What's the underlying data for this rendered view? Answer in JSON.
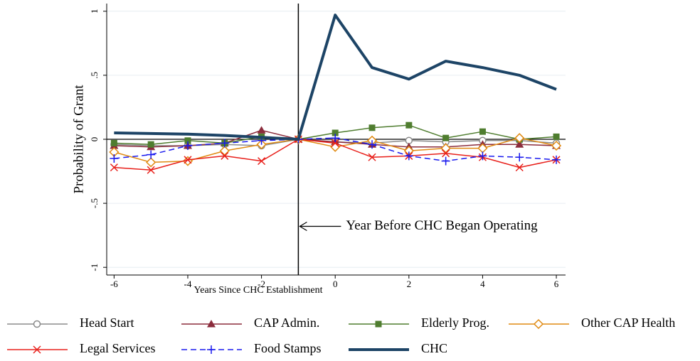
{
  "chart_data": {
    "type": "line",
    "x_label": "Years Since CHC Establishment",
    "y_label": "Probability of Grant",
    "x": [
      -6,
      -5,
      -4,
      -3,
      -2,
      -1,
      0,
      1,
      2,
      3,
      4,
      5,
      6
    ],
    "xlim": [
      -6.2,
      6.25
    ],
    "xticks": [
      -6,
      -4,
      -2,
      0,
      2,
      4,
      6
    ],
    "ylim": [
      -1.06,
      1.06
    ],
    "yticks": [
      {
        "value": -1,
        "label": "-1"
      },
      {
        "value": -0.5,
        "label": "-.5"
      },
      0,
      {
        "value": 0.5,
        "label": ".5"
      },
      1
    ],
    "grid": true,
    "vline": -1,
    "annotation": "Year Before CHC Began Operating",
    "series": [
      {
        "name": "Head Start",
        "color": "#8c8c8c",
        "marker": "circle",
        "dash": false,
        "width": 1.5,
        "values": [
          -0.04,
          -0.05,
          -0.05,
          -0.04,
          -0.05,
          0,
          -0.02,
          -0.03,
          -0.01,
          -0.02,
          -0.01,
          -0.01,
          -0.03
        ]
      },
      {
        "name": "CAP Admin.",
        "color": "#8b2c3c",
        "marker": "triangle",
        "dash": false,
        "width": 1.5,
        "values": [
          -0.05,
          -0.06,
          -0.05,
          -0.03,
          0.07,
          0,
          -0.02,
          -0.04,
          -0.06,
          -0.06,
          -0.04,
          -0.04,
          -0.05
        ]
      },
      {
        "name": "Elderly Prog.",
        "color": "#4f7d2f",
        "marker": "square",
        "dash": false,
        "width": 1.5,
        "values": [
          -0.03,
          -0.04,
          -0.01,
          -0.03,
          0.02,
          0,
          0.05,
          0.09,
          0.11,
          0.01,
          0.06,
          0,
          0.02
        ]
      },
      {
        "name": "Other CAP Health",
        "color": "#e08a12",
        "marker": "diamond",
        "dash": false,
        "width": 1.5,
        "values": [
          -0.1,
          -0.18,
          -0.17,
          -0.09,
          -0.04,
          0,
          -0.06,
          -0.01,
          -0.09,
          -0.07,
          -0.07,
          0.01,
          -0.05
        ]
      },
      {
        "name": "Legal Services",
        "color": "#e8201b",
        "marker": "x",
        "dash": false,
        "width": 1.5,
        "values": [
          -0.22,
          -0.24,
          -0.16,
          -0.13,
          -0.17,
          0,
          -0.03,
          -0.14,
          -0.13,
          -0.11,
          -0.14,
          -0.22,
          -0.16
        ]
      },
      {
        "name": "Food Stamps",
        "color": "#1a1aee",
        "marker": "plus",
        "dash": true,
        "width": 1.5,
        "values": [
          -0.15,
          -0.12,
          -0.05,
          -0.03,
          -0.01,
          0,
          0.01,
          -0.04,
          -0.13,
          -0.17,
          -0.13,
          -0.14,
          -0.16
        ]
      },
      {
        "name": "CHC",
        "color": "#1d4466",
        "marker": "none",
        "dash": false,
        "width": 4,
        "values": [
          0.05,
          0.045,
          0.04,
          0.03,
          0.015,
          0,
          0.97,
          0.56,
          0.47,
          0.61,
          0.56,
          0.5,
          0.39
        ]
      }
    ]
  }
}
